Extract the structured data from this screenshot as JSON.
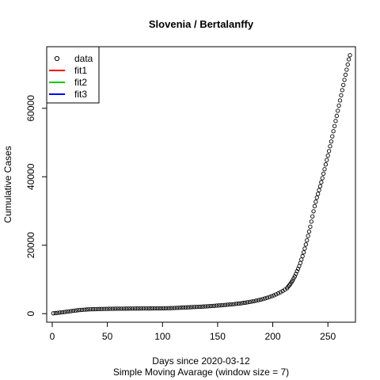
{
  "chart_data": {
    "type": "scatter",
    "title": "Slovenia / Bertalanffy",
    "xlabel": "Days since 2020-03-12",
    "sublabel": "Simple Moving Avarage (window size = 7)",
    "ylabel": "Cumulative Cases",
    "xlim": [
      -5,
      275
    ],
    "ylim": [
      -2500,
      78000
    ],
    "xticks": [
      0,
      50,
      100,
      150,
      200,
      250
    ],
    "yticks": [
      0,
      20000,
      40000,
      60000
    ],
    "grid": false,
    "legend": {
      "position": "top-left",
      "entries": [
        {
          "label": "data",
          "symbol": "circle",
          "color": "#000000"
        },
        {
          "label": "fit1",
          "symbol": "line",
          "color": "#ff0000"
        },
        {
          "label": "fit2",
          "symbol": "line",
          "color": "#00cd00"
        },
        {
          "label": "fit3",
          "symbol": "line",
          "color": "#0000ff"
        }
      ]
    },
    "series": [
      {
        "name": "data",
        "points": [
          [
            1,
            110
          ],
          [
            3,
            170
          ],
          [
            5,
            240
          ],
          [
            7,
            320
          ],
          [
            9,
            400
          ],
          [
            11,
            480
          ],
          [
            13,
            560
          ],
          [
            15,
            650
          ],
          [
            17,
            740
          ],
          [
            19,
            830
          ],
          [
            21,
            910
          ],
          [
            23,
            990
          ],
          [
            25,
            1060
          ],
          [
            27,
            1120
          ],
          [
            29,
            1170
          ],
          [
            31,
            1210
          ],
          [
            33,
            1250
          ],
          [
            35,
            1280
          ],
          [
            37,
            1300
          ],
          [
            39,
            1320
          ],
          [
            41,
            1340
          ],
          [
            43,
            1360
          ],
          [
            45,
            1380
          ],
          [
            47,
            1400
          ],
          [
            49,
            1410
          ],
          [
            51,
            1420
          ],
          [
            53,
            1430
          ],
          [
            55,
            1440
          ],
          [
            57,
            1450
          ],
          [
            59,
            1455
          ],
          [
            61,
            1460
          ],
          [
            63,
            1465
          ],
          [
            65,
            1470
          ],
          [
            67,
            1475
          ],
          [
            69,
            1480
          ],
          [
            71,
            1485
          ],
          [
            73,
            1490
          ],
          [
            75,
            1495
          ],
          [
            77,
            1500
          ],
          [
            79,
            1505
          ],
          [
            81,
            1510
          ],
          [
            83,
            1515
          ],
          [
            85,
            1520
          ],
          [
            87,
            1525
          ],
          [
            89,
            1530
          ],
          [
            91,
            1535
          ],
          [
            93,
            1540
          ],
          [
            95,
            1545
          ],
          [
            97,
            1550
          ],
          [
            99,
            1555
          ],
          [
            101,
            1565
          ],
          [
            103,
            1580
          ],
          [
            105,
            1600
          ],
          [
            107,
            1620
          ],
          [
            109,
            1640
          ],
          [
            111,
            1670
          ],
          [
            113,
            1700
          ],
          [
            115,
            1730
          ],
          [
            117,
            1760
          ],
          [
            119,
            1790
          ],
          [
            121,
            1820
          ],
          [
            123,
            1850
          ],
          [
            125,
            1880
          ],
          [
            127,
            1910
          ],
          [
            129,
            1940
          ],
          [
            131,
            1970
          ],
          [
            133,
            2000
          ],
          [
            135,
            2040
          ],
          [
            137,
            2080
          ],
          [
            139,
            2120
          ],
          [
            141,
            2160
          ],
          [
            143,
            2200
          ],
          [
            145,
            2250
          ],
          [
            147,
            2300
          ],
          [
            149,
            2350
          ],
          [
            151,
            2400
          ],
          [
            153,
            2450
          ],
          [
            155,
            2500
          ],
          [
            157,
            2560
          ],
          [
            159,
            2620
          ],
          [
            161,
            2680
          ],
          [
            163,
            2740
          ],
          [
            165,
            2800
          ],
          [
            167,
            2870
          ],
          [
            169,
            2950
          ],
          [
            171,
            3030
          ],
          [
            173,
            3120
          ],
          [
            175,
            3210
          ],
          [
            177,
            3310
          ],
          [
            179,
            3420
          ],
          [
            181,
            3540
          ],
          [
            183,
            3660
          ],
          [
            185,
            3800
          ],
          [
            187,
            3950
          ],
          [
            189,
            4100
          ],
          [
            191,
            4270
          ],
          [
            193,
            4450
          ],
          [
            195,
            4650
          ],
          [
            197,
            4870
          ],
          [
            199,
            5100
          ],
          [
            201,
            5350
          ],
          [
            203,
            5630
          ],
          [
            205,
            5930
          ],
          [
            207,
            6260
          ],
          [
            209,
            6620
          ],
          [
            211,
            7000
          ],
          [
            213,
            7450
          ],
          [
            214,
            7900
          ],
          [
            215,
            8300
          ],
          [
            216,
            8700
          ],
          [
            217,
            9200
          ],
          [
            218,
            9700
          ],
          [
            219,
            10300
          ],
          [
            220,
            10900
          ],
          [
            221,
            11600
          ],
          [
            222,
            12400
          ],
          [
            223,
            13100
          ],
          [
            224,
            13900
          ],
          [
            225,
            14800
          ],
          [
            226,
            15800
          ],
          [
            227,
            16800
          ],
          [
            228,
            17900
          ],
          [
            229,
            19000
          ],
          [
            230,
            20200
          ],
          [
            231,
            21400
          ],
          [
            232,
            22700
          ],
          [
            233,
            24000
          ],
          [
            234,
            25400
          ],
          [
            235,
            26900
          ],
          [
            236,
            28400
          ],
          [
            237,
            29900
          ],
          [
            238,
            31400
          ],
          [
            239,
            32700
          ],
          [
            240,
            33900
          ],
          [
            241,
            35000
          ],
          [
            242,
            36100
          ],
          [
            243,
            37200
          ],
          [
            244,
            38400
          ],
          [
            245,
            39600
          ],
          [
            246,
            40900
          ],
          [
            247,
            42200
          ],
          [
            248,
            43600
          ],
          [
            249,
            44900
          ],
          [
            250,
            46200
          ],
          [
            251,
            47500
          ],
          [
            252,
            48900
          ],
          [
            253,
            50300
          ],
          [
            254,
            51800
          ],
          [
            255,
            53300
          ],
          [
            256,
            54800
          ],
          [
            257,
            56300
          ],
          [
            258,
            57800
          ],
          [
            259,
            59300
          ],
          [
            260,
            60800
          ],
          [
            261,
            62300
          ],
          [
            262,
            63800
          ],
          [
            263,
            65300
          ],
          [
            264,
            66800
          ],
          [
            265,
            68300
          ],
          [
            266,
            69800
          ],
          [
            267,
            71300
          ],
          [
            268,
            72800
          ],
          [
            269,
            74300
          ],
          [
            270,
            75500
          ]
        ]
      }
    ]
  }
}
